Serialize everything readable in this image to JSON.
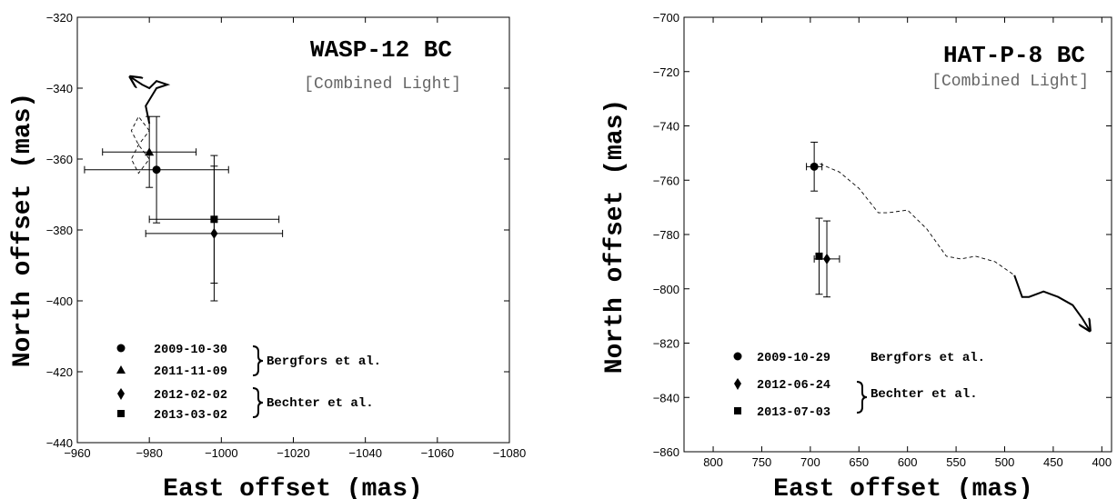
{
  "chart_data": [
    {
      "type": "scatter",
      "title": "WASP-12 BC",
      "subtitle": "[Combined Light]",
      "xlabel": "East offset (mas)",
      "ylabel": "North offset (mas)",
      "xlim": [
        -960,
        -1080
      ],
      "ylim": [
        -440,
        -320
      ],
      "xticks": [
        -960,
        -980,
        -1000,
        -1020,
        -1040,
        -1060,
        -1080
      ],
      "yticks": [
        -440,
        -420,
        -400,
        -380,
        -360,
        -340,
        -320
      ],
      "grid": false,
      "legend_position": "bottom-left",
      "points": [
        {
          "date": "2009-10-30",
          "marker": "circle",
          "x": -982,
          "y": -363,
          "xerr": 20,
          "yerr": 15
        },
        {
          "date": "2011-11-09",
          "marker": "triangle",
          "x": -980,
          "y": -358,
          "xerr": 13,
          "yerr": 10
        },
        {
          "date": "2012-02-02",
          "marker": "diamond",
          "x": -998,
          "y": -381,
          "xerr": 19,
          "yerr": 19
        },
        {
          "date": "2013-03-02",
          "marker": "square",
          "x": -998,
          "y": -377,
          "xerr": 18,
          "yerr": 18
        }
      ],
      "references": [
        {
          "label": "Bergfors et al.",
          "dates": [
            "2009-10-30",
            "2011-11-09"
          ]
        },
        {
          "label": "Bechter et al.",
          "dates": [
            "2012-02-02",
            "2013-03-02"
          ]
        }
      ],
      "track_dashed": [
        [
          -980,
          -352
        ],
        [
          -977,
          -348
        ],
        [
          -975,
          -352
        ],
        [
          -977,
          -356
        ],
        [
          -980,
          -360
        ],
        [
          -977,
          -364
        ],
        [
          -975,
          -360
        ],
        [
          -977,
          -356
        ],
        [
          -980,
          -352
        ]
      ],
      "track_solid": [
        [
          -980,
          -350
        ],
        [
          -979,
          -345
        ],
        [
          -982,
          -340
        ],
        [
          -985,
          -339
        ],
        [
          -982,
          -338
        ],
        [
          -980,
          -340
        ],
        [
          -978,
          -339
        ],
        [
          -975,
          -337
        ]
      ]
    },
    {
      "type": "scatter",
      "title": "HAT-P-8 BC",
      "subtitle": "[Combined Light]",
      "xlabel": "East offset (mas)",
      "ylabel": "North offset (mas)",
      "xlim": [
        830,
        390
      ],
      "ylim": [
        -860,
        -700
      ],
      "xticks": [
        800,
        750,
        700,
        650,
        600,
        550,
        500,
        450,
        400
      ],
      "yticks": [
        -860,
        -840,
        -820,
        -800,
        -780,
        -760,
        -740,
        -720,
        -700
      ],
      "grid": false,
      "legend_position": "bottom-left",
      "points": [
        {
          "date": "2009-10-29",
          "marker": "circle",
          "x": 696,
          "y": -755,
          "xerr": 8,
          "yerr": 9
        },
        {
          "date": "2012-06-24",
          "marker": "diamond",
          "x": 683,
          "y": -789,
          "xerr": 13,
          "yerr": 14
        },
        {
          "date": "2013-07-03",
          "marker": "square",
          "x": 691,
          "y": -788,
          "xerr": 0,
          "yerr": 14
        }
      ],
      "references": [
        {
          "label": "Bergfors et al.",
          "dates": [
            "2009-10-29"
          ]
        },
        {
          "label": "Bechter et al.",
          "dates": [
            "2012-06-24",
            "2013-07-03"
          ]
        }
      ],
      "track_dashed": [
        [
          690,
          -754
        ],
        [
          670,
          -757
        ],
        [
          650,
          -763
        ],
        [
          630,
          -772
        ],
        [
          620,
          -772
        ],
        [
          600,
          -771
        ],
        [
          580,
          -778
        ],
        [
          560,
          -788
        ],
        [
          545,
          -789
        ],
        [
          530,
          -788
        ],
        [
          510,
          -790
        ],
        [
          490,
          -795
        ]
      ],
      "track_solid": [
        [
          490,
          -795
        ],
        [
          482,
          -803
        ],
        [
          475,
          -803
        ],
        [
          460,
          -801
        ],
        [
          445,
          -803
        ],
        [
          430,
          -806
        ],
        [
          420,
          -811
        ],
        [
          413,
          -815
        ]
      ]
    }
  ]
}
